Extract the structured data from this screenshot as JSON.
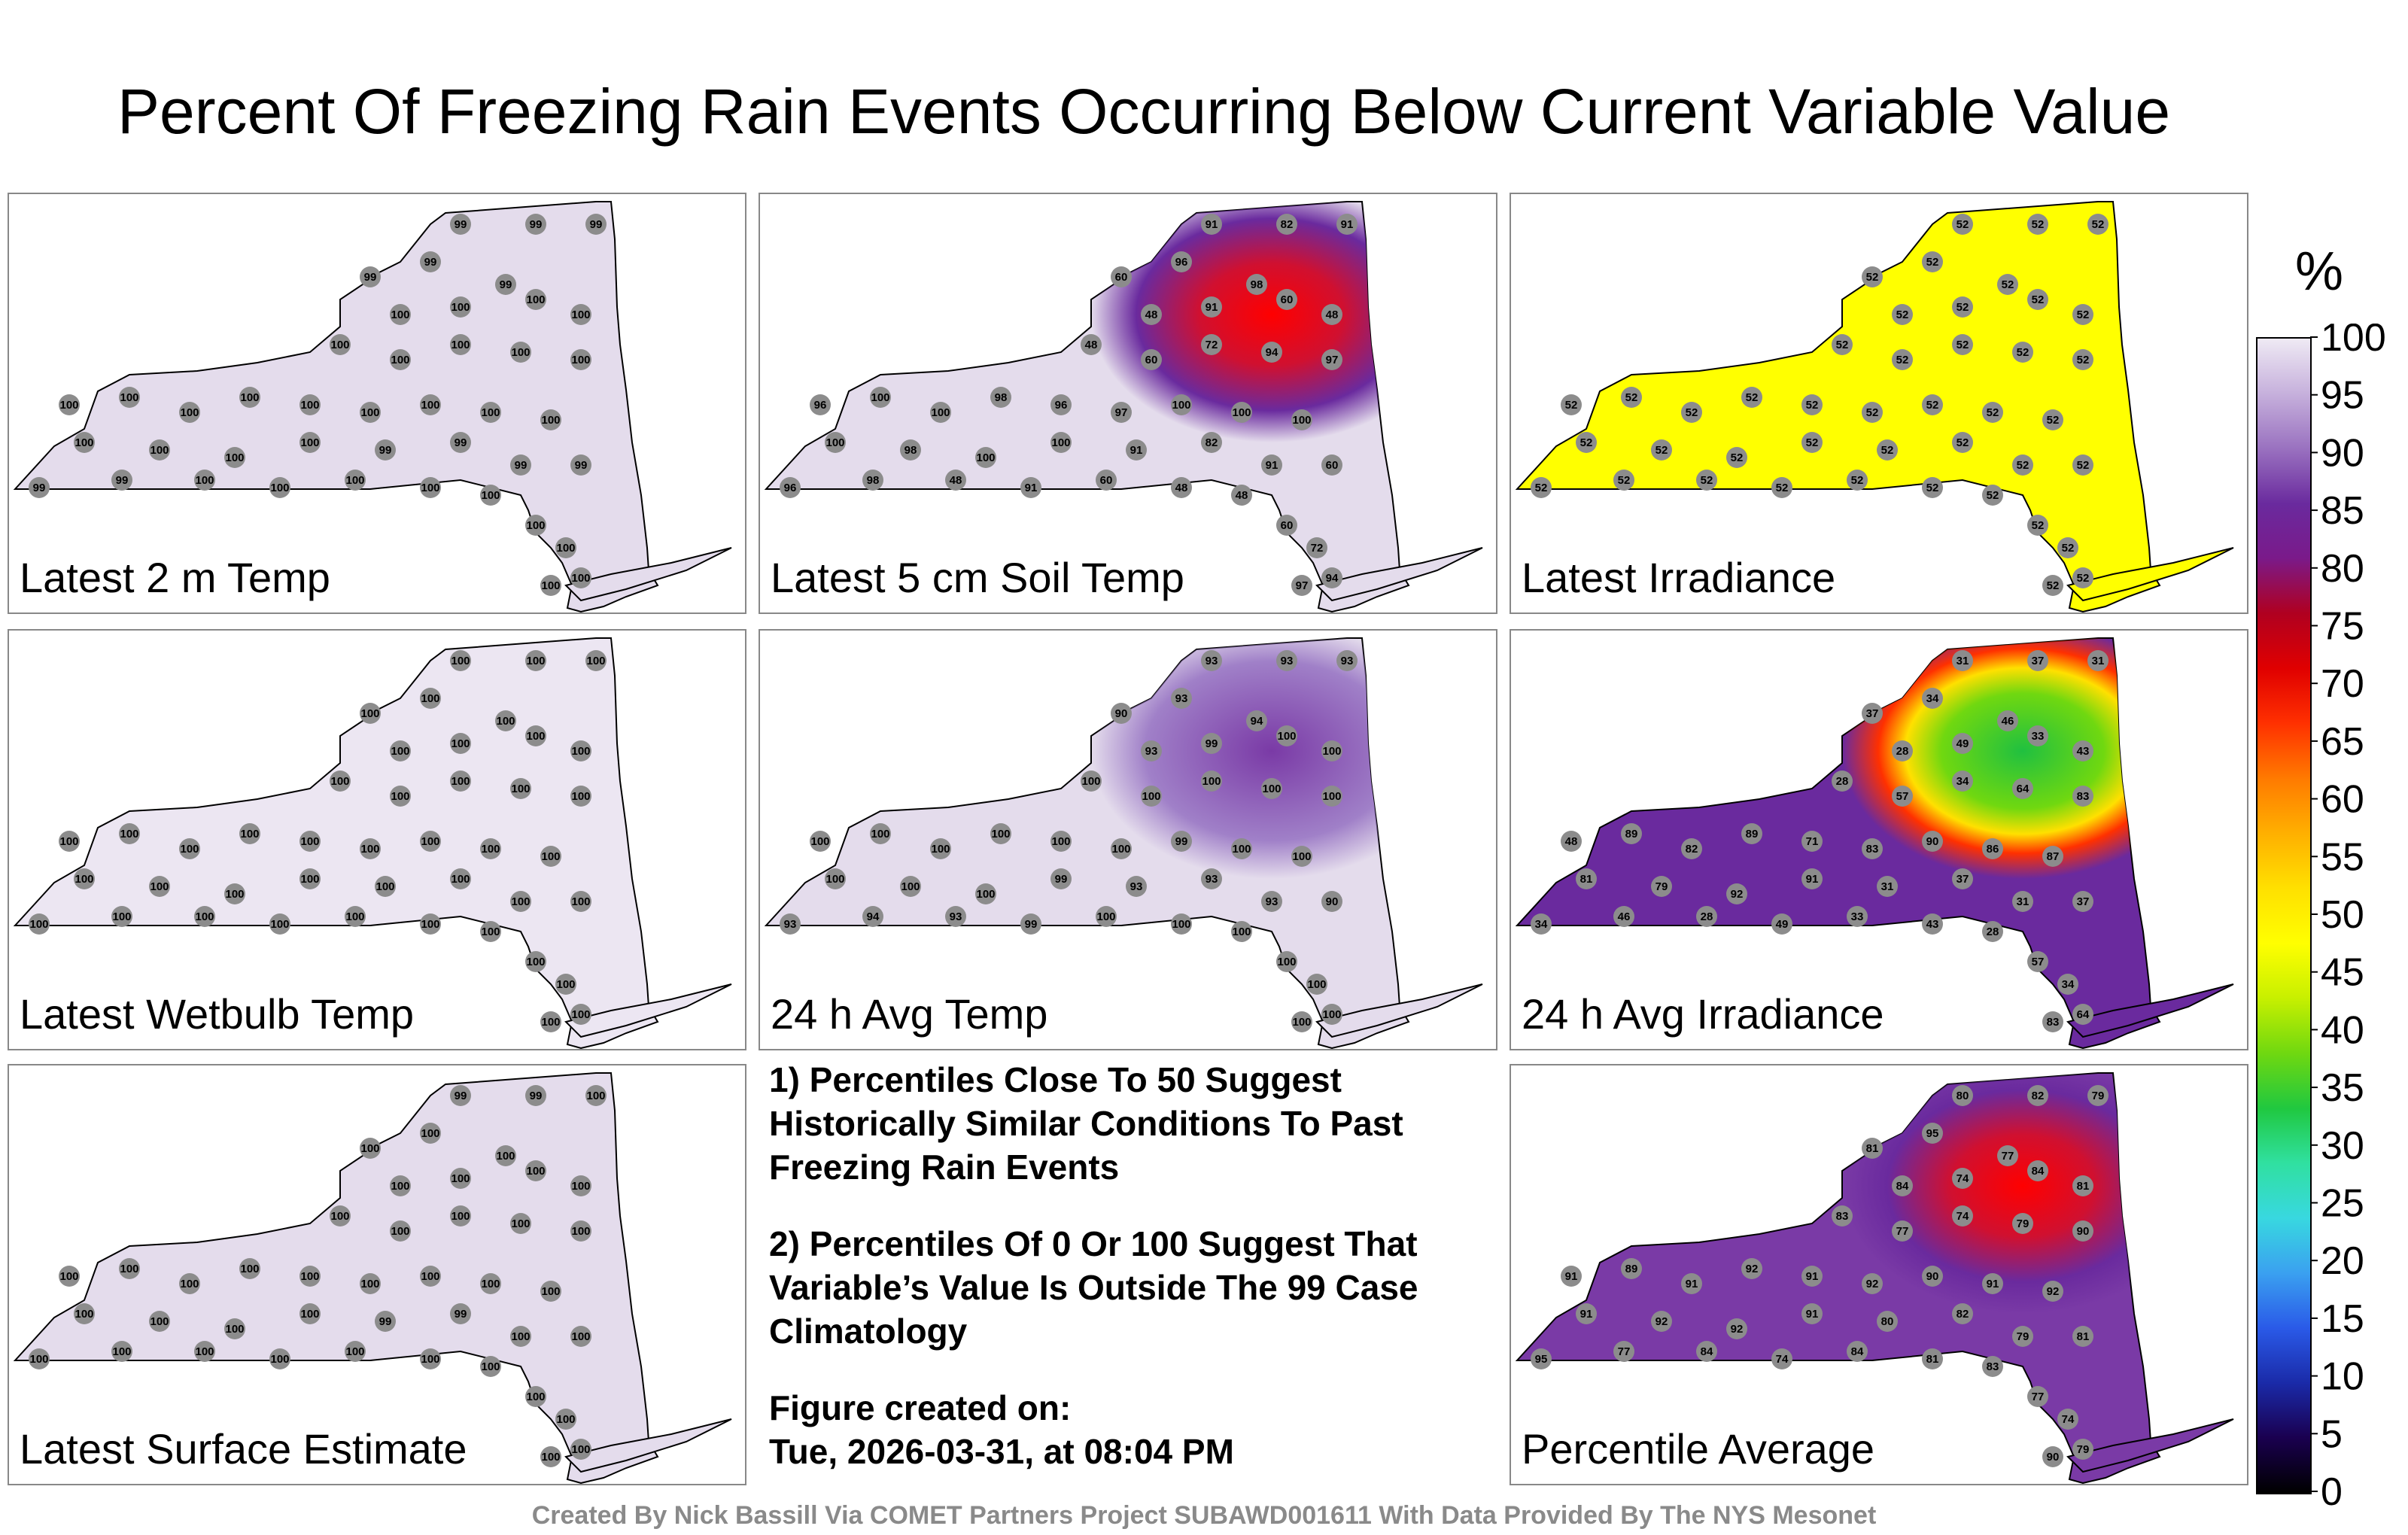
{
  "title": "Percent Of Freezing Rain Events Occurring Below Current Variable Value",
  "panels": [
    {
      "label": "Latest 2 m Temp",
      "values": [
        "99",
        "99",
        "99",
        "99",
        "99",
        "99",
        "100",
        "100",
        "100",
        "100",
        "100",
        "100",
        "100",
        "100",
        "100",
        "100",
        "100",
        "100",
        "100",
        "100",
        "100",
        "100",
        "100",
        "100",
        "100",
        "100",
        "100",
        "100"
      ],
      "base_color": "#e4dcec",
      "hotspot": "none"
    },
    {
      "label": "Latest 5 cm Soil Temp",
      "values": [
        "91",
        "82",
        "91",
        "60",
        "96",
        "98",
        "48",
        "91",
        "60",
        "48",
        "48",
        "60",
        "72",
        "94",
        "97",
        "96",
        "100",
        "100",
        "98",
        "96",
        "97",
        "100",
        "100",
        "100",
        "100",
        "98",
        "100",
        "100"
      ],
      "base_color": "#e4dcec",
      "hotspot": "north-red"
    },
    {
      "label": "Latest Irradiance",
      "values": [
        "52",
        "52",
        "52",
        "52",
        "52",
        "52",
        "52",
        "52",
        "52",
        "52",
        "52",
        "52",
        "52",
        "52",
        "52",
        "52",
        "52",
        "52",
        "52",
        "52",
        "52",
        "52",
        "52",
        "52",
        "52",
        "52",
        "52",
        "52"
      ],
      "base_color": "#ffff00",
      "hotspot": "none"
    },
    {
      "label": "Latest Wetbulb Temp",
      "values": [
        "100",
        "100",
        "100",
        "100",
        "100",
        "100",
        "100",
        "100",
        "100",
        "100",
        "100",
        "100",
        "100",
        "100",
        "100",
        "100",
        "100",
        "100",
        "100",
        "100",
        "100",
        "100",
        "100",
        "100",
        "100",
        "100",
        "100",
        "100"
      ],
      "base_color": "#ece6f2",
      "hotspot": "none"
    },
    {
      "label": "24 h Avg Temp",
      "values": [
        "93",
        "93",
        "93",
        "90",
        "93",
        "94",
        "93",
        "99",
        "100",
        "100",
        "100",
        "100",
        "100",
        "100",
        "100",
        "100",
        "100",
        "100",
        "100",
        "100",
        "100",
        "99",
        "100",
        "100",
        "100",
        "100",
        "100",
        "99"
      ],
      "base_color": "#e4dcec",
      "hotspot": "north-purple"
    },
    {
      "label": "24 h Avg Irradiance",
      "values": [
        "31",
        "37",
        "31",
        "37",
        "34",
        "46",
        "28",
        "49",
        "33",
        "43",
        "28",
        "57",
        "34",
        "64",
        "83",
        "48",
        "89",
        "82",
        "89",
        "71",
        "83",
        "90",
        "86",
        "87",
        "81",
        "79",
        "92",
        "91"
      ],
      "base_color": "#6a2a9e",
      "hotspot": "north-green"
    },
    {
      "label": "Latest Surface Estimate",
      "values": [
        "99",
        "99",
        "100",
        "100",
        "100",
        "100",
        "100",
        "100",
        "100",
        "100",
        "100",
        "100",
        "100",
        "100",
        "100",
        "100",
        "100",
        "100",
        "100",
        "100",
        "100",
        "100",
        "100",
        "100",
        "100",
        "100",
        "100",
        "100"
      ],
      "base_color": "#e4dcec",
      "hotspot": "none"
    },
    {
      "label": "Percentile Average",
      "values": [
        "80",
        "82",
        "79",
        "81",
        "95",
        "77",
        "84",
        "74",
        "84",
        "81",
        "83",
        "77",
        "74",
        "79",
        "90",
        "91",
        "89",
        "91",
        "92",
        "91",
        "92",
        "90",
        "91",
        "92",
        "91",
        "92",
        "92",
        "91"
      ],
      "base_color": "#7a3aa6",
      "hotspot": "north-red"
    }
  ],
  "notes": {
    "note1": "1) Percentiles Close To 50 Suggest Historically Similar Conditions To Past Freezing Rain Events",
    "note2": "2) Percentiles Of 0 Or 100 Suggest That Variable’s Value Is Outside The 99 Case Climatology",
    "created_label": "Figure created on:",
    "created_date": "Tue, 2026-03-31, at 08:04 PM"
  },
  "colorbar": {
    "unit": "%",
    "ticks": [
      "100",
      "95",
      "90",
      "85",
      "80",
      "75",
      "70",
      "65",
      "60",
      "55",
      "50",
      "45",
      "40",
      "35",
      "30",
      "25",
      "20",
      "15",
      "10",
      "5",
      "0"
    ],
    "colors": [
      "#000000",
      "#1a0050",
      "#1a2aa8",
      "#2a5ae8",
      "#3aa0f0",
      "#38d8e0",
      "#30e0a0",
      "#20c840",
      "#70d810",
      "#c8f000",
      "#ffff00",
      "#ffe000",
      "#ffb000",
      "#ff7a00",
      "#ff3000",
      "#e00000",
      "#b00020",
      "#7a1a8a",
      "#6a2a9e",
      "#9a72c0",
      "#c6b0dc",
      "#efeaf4"
    ]
  },
  "footer": "Created By Nick Bassill Via COMET Partners Project SUBAWD001611 With Data Provided By The NYS Mesonet"
}
